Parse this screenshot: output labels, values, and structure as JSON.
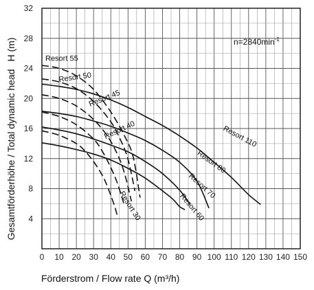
{
  "chart_data": {
    "type": "line",
    "title": "",
    "xlabel": "Förderstrom /  Flow rate  Q (m³/h)",
    "ylabel_left": "Gesamtförderhöhe / Total dynamic head",
    "ylabel_top": "H (m)",
    "annotation": "n=2840min",
    "annotation_sup": "-1",
    "xlim": [
      0,
      150
    ],
    "ylim": [
      0,
      32
    ],
    "xticks": [
      0,
      10,
      20,
      30,
      40,
      50,
      60,
      70,
      80,
      90,
      100,
      110,
      120,
      130,
      140,
      150
    ],
    "yticks": [
      4,
      8,
      12,
      16,
      20,
      24,
      28,
      32
    ],
    "grid": true,
    "legend": "none",
    "series": [
      {
        "name": "Resort 30",
        "style": "dashed",
        "x": [
          0,
          10,
          20,
          25,
          30,
          35,
          38,
          42,
          44
        ],
        "y": [
          15.7,
          15.1,
          14.0,
          13.0,
          11.6,
          9.8,
          8.3,
          5.8,
          4.2
        ]
      },
      {
        "name": "Resort 40",
        "style": "dashed",
        "x": [
          0,
          10,
          20,
          30,
          35,
          40,
          44,
          48
        ],
        "y": [
          18.2,
          17.6,
          16.5,
          14.6,
          13.0,
          10.8,
          8.6,
          5.7
        ]
      },
      {
        "name": "Resort 45",
        "style": "dashed",
        "x": [
          0,
          10,
          20,
          30,
          38,
          44,
          48,
          52
        ],
        "y": [
          20.5,
          20.0,
          19.0,
          17.2,
          15.0,
          12.5,
          10.0,
          6.3
        ]
      },
      {
        "name": "Resort 50",
        "style": "dashed",
        "x": [
          0,
          10,
          20,
          30,
          40,
          46,
          50,
          54
        ],
        "y": [
          22.6,
          22.2,
          21.3,
          19.6,
          16.9,
          14.3,
          11.9,
          7.7
        ]
      },
      {
        "name": "Resort 55",
        "style": "dashed",
        "x": [
          0,
          10,
          20,
          30,
          40,
          48,
          53,
          57
        ],
        "y": [
          24.4,
          24.0,
          23.0,
          21.2,
          18.2,
          15.0,
          12.2,
          6.8
        ]
      },
      {
        "name": "Resort 60",
        "style": "solid",
        "x": [
          0,
          10,
          20,
          30,
          40,
          50,
          60,
          70,
          76,
          80,
          83
        ],
        "y": [
          14.1,
          13.7,
          13.2,
          12.6,
          11.8,
          10.7,
          9.4,
          7.7,
          6.6,
          5.6,
          5.2
        ]
      },
      {
        "name": "Resort 70",
        "style": "solid",
        "x": [
          0,
          10,
          20,
          30,
          40,
          50,
          60,
          70,
          80,
          86
        ],
        "y": [
          16.2,
          15.8,
          15.3,
          14.6,
          13.8,
          12.9,
          11.6,
          10.0,
          7.8,
          5.9
        ]
      },
      {
        "name": "Resort 80",
        "style": "solid",
        "x": [
          0,
          10,
          20,
          30,
          40,
          50,
          60,
          70,
          80,
          90,
          97
        ],
        "y": [
          18.3,
          18.0,
          17.6,
          17.0,
          16.3,
          15.4,
          14.4,
          13.1,
          11.5,
          9.0,
          5.4
        ]
      },
      {
        "name": "Resort 110",
        "style": "solid",
        "x": [
          0,
          10,
          20,
          30,
          40,
          50,
          60,
          70,
          80,
          90,
          100,
          110,
          120,
          127
        ],
        "y": [
          21.9,
          21.6,
          21.2,
          20.6,
          19.8,
          18.8,
          17.6,
          16.4,
          15.0,
          13.4,
          11.5,
          9.5,
          7.2,
          5.9
        ]
      }
    ]
  }
}
